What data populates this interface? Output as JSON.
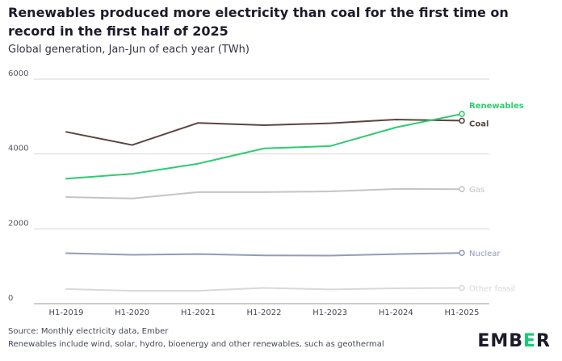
{
  "title": "Renewables produced more electricity than coal for the first time on record in the first half of 2025",
  "subtitle": "Global generation, Jan-Jun of each year (TWh)",
  "footer": {
    "source": "Source: Monthly electricity data, Ember",
    "note": "Renewables include wind, solar, hydro, bioenergy and other renewables, such as geothermal"
  },
  "logo": {
    "pre": "EMB",
    "accent": "E",
    "post": "R"
  },
  "chart_data": {
    "type": "line",
    "categories": [
      "H1-2019",
      "H1-2020",
      "H1-2021",
      "H1-2022",
      "H1-2023",
      "H1-2024",
      "H1-2025"
    ],
    "ylim": [
      0,
      6000
    ],
    "yticks": [
      0,
      2000,
      4000,
      6000
    ],
    "grid": true,
    "series": [
      {
        "name": "Other fossil",
        "color": "#d9d9d9",
        "values": [
          390,
          345,
          345,
          420,
          380,
          410,
          420
        ]
      },
      {
        "name": "Nuclear",
        "color": "#8f9cba",
        "values": [
          1350,
          1305,
          1325,
          1290,
          1285,
          1325,
          1355
        ]
      },
      {
        "name": "Gas",
        "color": "#c4c4c4",
        "values": [
          2850,
          2810,
          2980,
          2980,
          3000,
          3065,
          3060
        ]
      },
      {
        "name": "Coal",
        "color": "#5b4541",
        "values": [
          4590,
          4240,
          4830,
          4770,
          4820,
          4920,
          4890
        ]
      },
      {
        "name": "Renewables",
        "color": "#2ecc6f",
        "values": [
          3340,
          3470,
          3740,
          4150,
          4210,
          4710,
          5070
        ]
      }
    ]
  }
}
